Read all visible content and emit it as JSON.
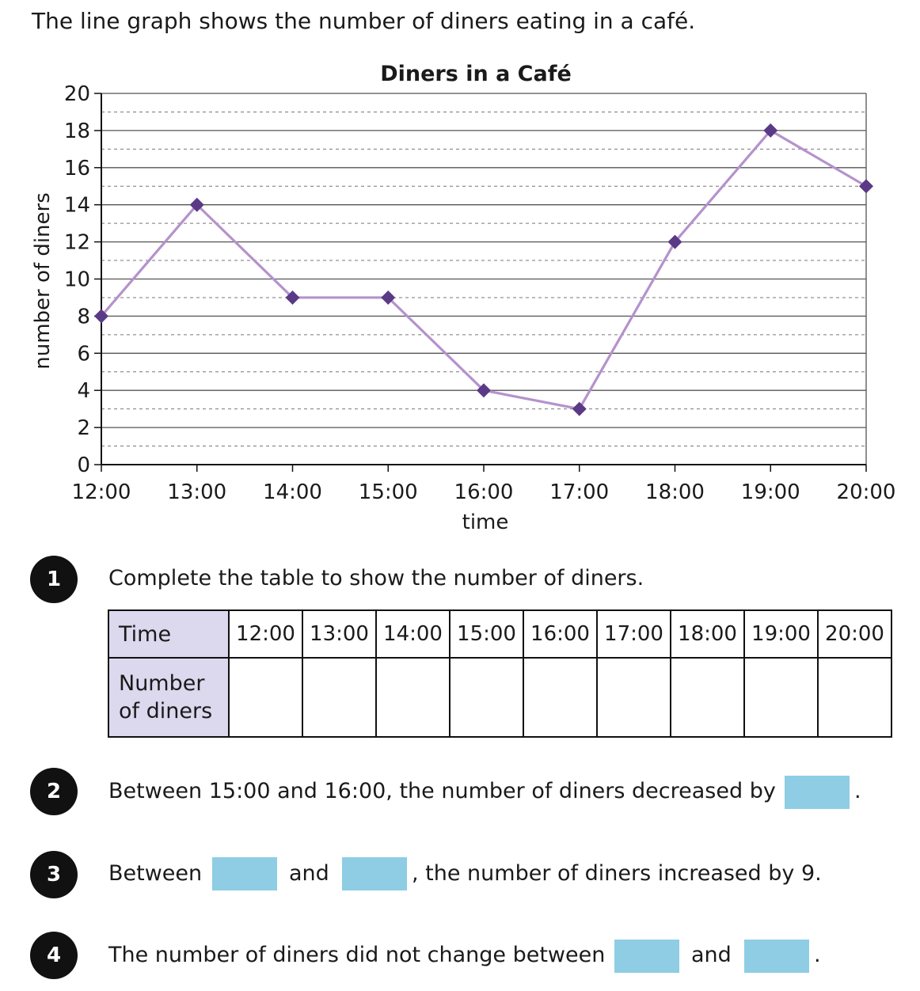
{
  "intro": "The line graph shows the number of diners eating in a café.",
  "chart_data": {
    "type": "line",
    "title": "Diners in a Café",
    "xlabel": "time",
    "ylabel": "number of diners",
    "categories": [
      "12:00",
      "13:00",
      "14:00",
      "15:00",
      "16:00",
      "17:00",
      "18:00",
      "19:00",
      "20:00"
    ],
    "values": [
      8,
      14,
      9,
      9,
      4,
      3,
      12,
      18,
      15
    ],
    "ylim": [
      0,
      20
    ],
    "yticks": [
      0,
      2,
      4,
      6,
      8,
      10,
      12,
      14,
      16,
      18,
      20
    ],
    "grid": true,
    "line_color": "#b592cc",
    "marker_color": "#5a3a86"
  },
  "questions": [
    {
      "number": "1",
      "text": "Complete the table to show the number of diners."
    },
    {
      "number": "2",
      "text": "Between 15:00 and 16:00, the number of diners decreased by"
    },
    {
      "number": "3",
      "text_before": "Between",
      "text_middle": "and",
      "text_after": ", the number of diners increased by 9."
    },
    {
      "number": "4",
      "text_before": "The number of diners did not change between",
      "text_middle": "and"
    }
  ],
  "table": {
    "row1_header": "Time",
    "row2_header_line1": "Number",
    "row2_header_line2": "of diners",
    "times": [
      "12:00",
      "13:00",
      "14:00",
      "15:00",
      "16:00",
      "17:00",
      "18:00",
      "19:00",
      "20:00"
    ]
  },
  "punctuation": "."
}
